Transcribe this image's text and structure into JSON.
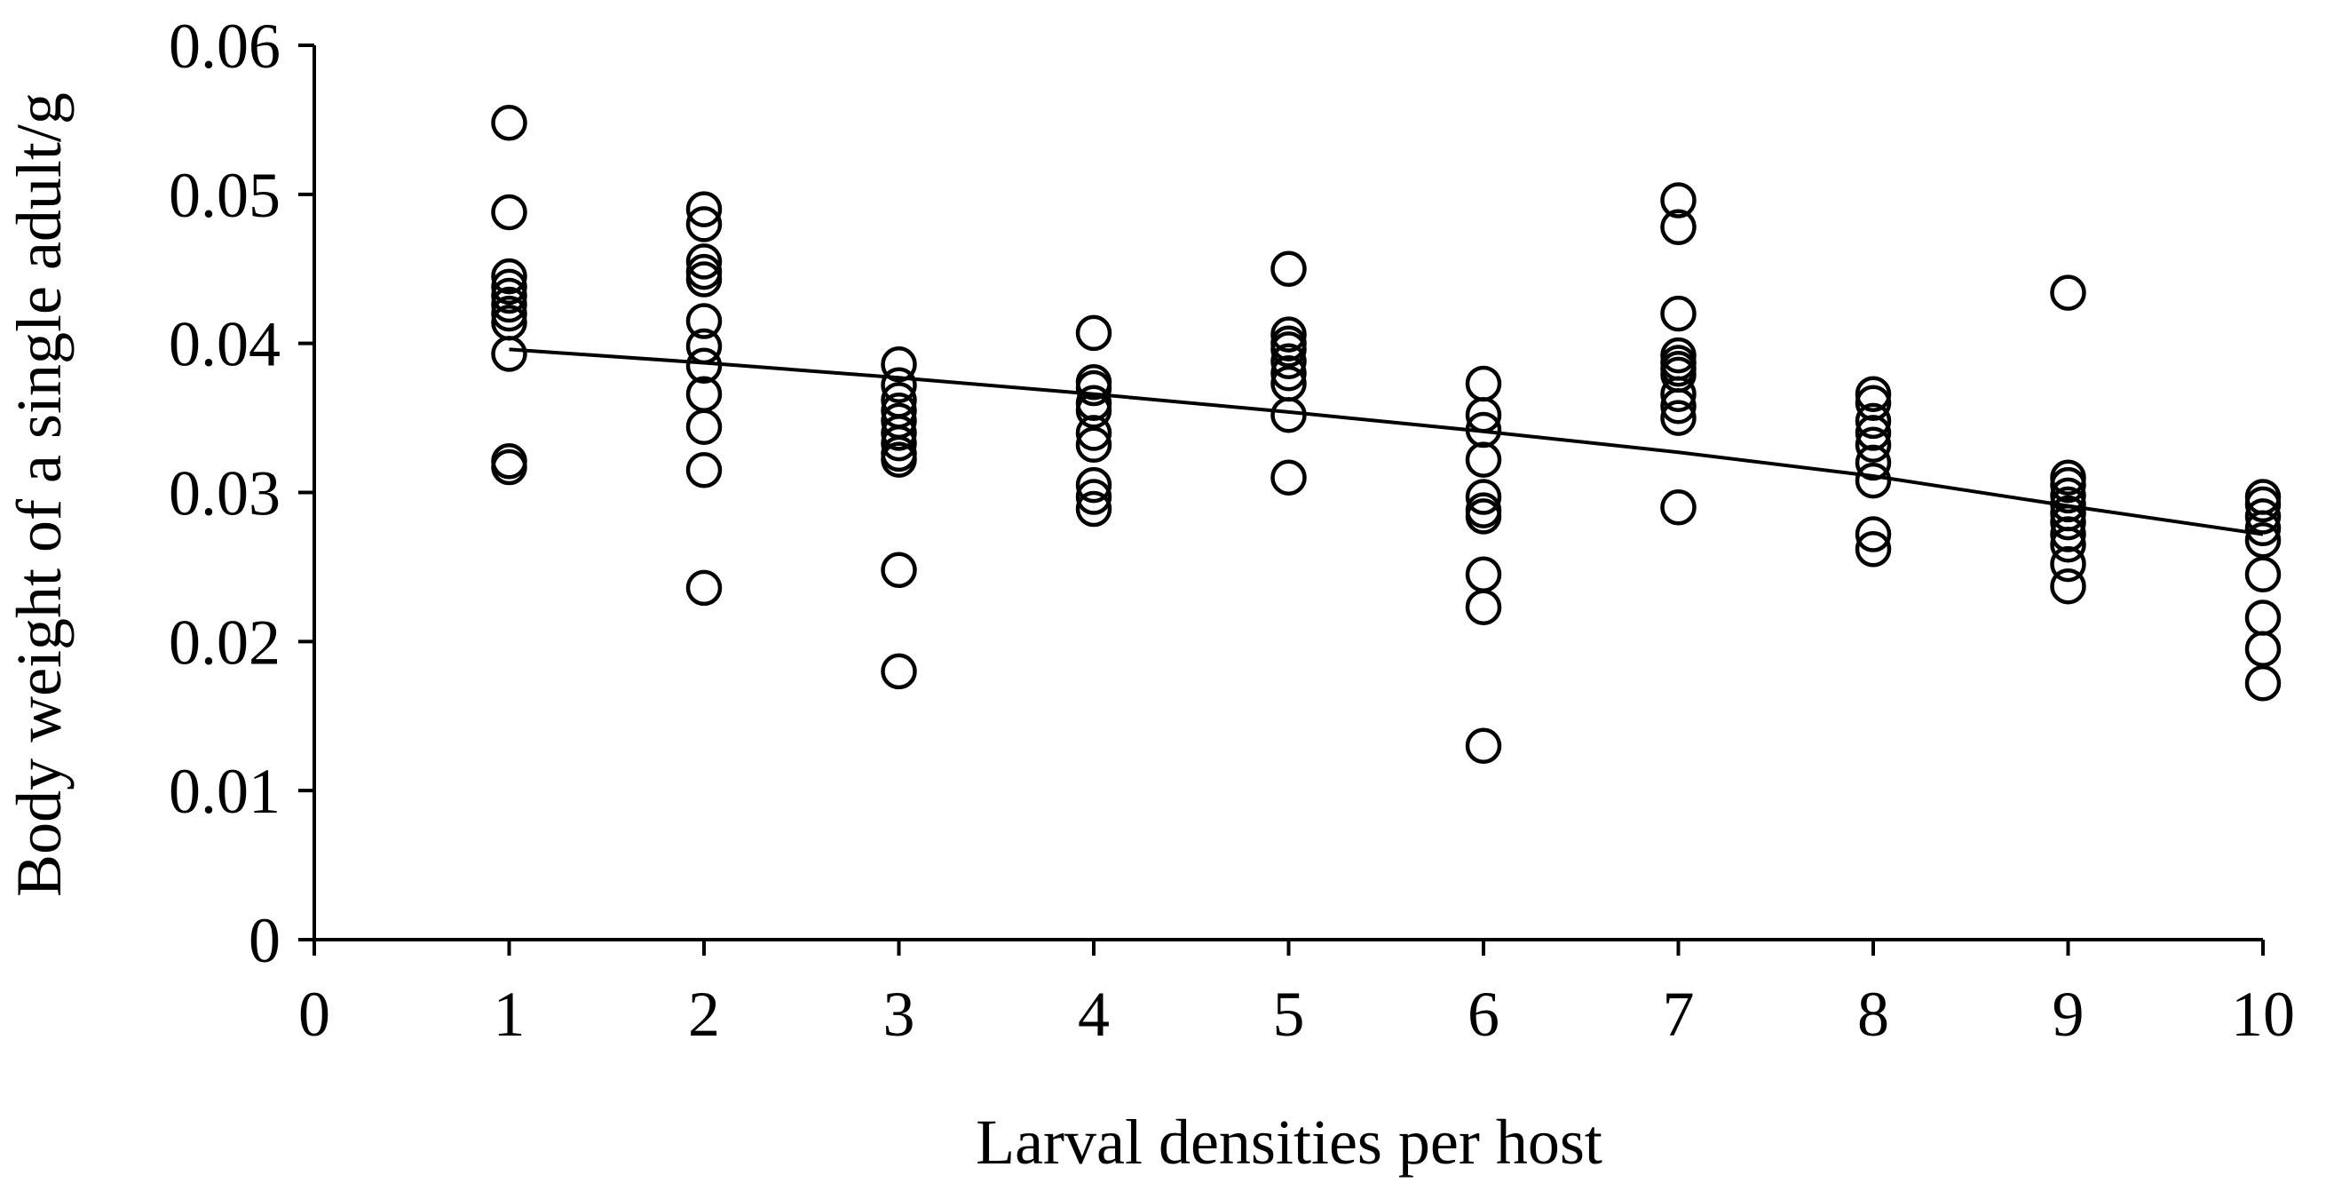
{
  "chart_data": {
    "type": "scatter",
    "title": "",
    "xlabel": "Larval densities per host",
    "ylabel": "Body weight of a single adult/g",
    "xlim": [
      0,
      10
    ],
    "ylim": [
      0,
      0.06
    ],
    "xticks": [
      "0",
      "1",
      "2",
      "3",
      "4",
      "5",
      "6",
      "7",
      "8",
      "9",
      "10"
    ],
    "yticks": [
      "0",
      "0.01",
      "0.02",
      "0.03",
      "0.04",
      "0.05",
      "0.06"
    ],
    "grid": false,
    "legend": "none",
    "marker": "open-circle",
    "series": [
      {
        "points": [
          [
            1,
            0.0548
          ],
          [
            1,
            0.0488
          ],
          [
            1,
            0.0445
          ],
          [
            1,
            0.0438
          ],
          [
            1,
            0.0432
          ],
          [
            1,
            0.0426
          ],
          [
            1,
            0.042
          ],
          [
            1,
            0.0414
          ],
          [
            1,
            0.0393
          ],
          [
            1,
            0.0321
          ],
          [
            1,
            0.0317
          ],
          [
            2,
            0.049
          ],
          [
            2,
            0.048
          ],
          [
            2,
            0.0455
          ],
          [
            2,
            0.0448
          ],
          [
            2,
            0.0443
          ],
          [
            2,
            0.0415
          ],
          [
            2,
            0.0398
          ],
          [
            2,
            0.0385
          ],
          [
            2,
            0.0366
          ],
          [
            2,
            0.0344
          ],
          [
            2,
            0.0315
          ],
          [
            2,
            0.0236
          ],
          [
            3,
            0.0386
          ],
          [
            3,
            0.0372
          ],
          [
            3,
            0.0362
          ],
          [
            3,
            0.0355
          ],
          [
            3,
            0.0348
          ],
          [
            3,
            0.034
          ],
          [
            3,
            0.0333
          ],
          [
            3,
            0.0326
          ],
          [
            3,
            0.0322
          ],
          [
            3,
            0.0248
          ],
          [
            3,
            0.018
          ],
          [
            4,
            0.0407
          ],
          [
            4,
            0.0374
          ],
          [
            4,
            0.037
          ],
          [
            4,
            0.036
          ],
          [
            4,
            0.0355
          ],
          [
            4,
            0.034
          ],
          [
            4,
            0.0332
          ],
          [
            4,
            0.0305
          ],
          [
            4,
            0.0297
          ],
          [
            4,
            0.0289
          ],
          [
            5,
            0.045
          ],
          [
            5,
            0.0406
          ],
          [
            5,
            0.04
          ],
          [
            5,
            0.0396
          ],
          [
            5,
            0.0388
          ],
          [
            5,
            0.038
          ],
          [
            5,
            0.0373
          ],
          [
            5,
            0.0352
          ],
          [
            5,
            0.031
          ],
          [
            6,
            0.0373
          ],
          [
            6,
            0.0352
          ],
          [
            6,
            0.0342
          ],
          [
            6,
            0.0322
          ],
          [
            6,
            0.0297
          ],
          [
            6,
            0.0288
          ],
          [
            6,
            0.0284
          ],
          [
            6,
            0.0245
          ],
          [
            6,
            0.0223
          ],
          [
            6,
            0.013
          ],
          [
            7,
            0.0496
          ],
          [
            7,
            0.0478
          ],
          [
            7,
            0.042
          ],
          [
            7,
            0.0392
          ],
          [
            7,
            0.0387
          ],
          [
            7,
            0.0383
          ],
          [
            7,
            0.0379
          ],
          [
            7,
            0.0366
          ],
          [
            7,
            0.0358
          ],
          [
            7,
            0.035
          ],
          [
            7,
            0.029
          ],
          [
            8,
            0.0366
          ],
          [
            8,
            0.036
          ],
          [
            8,
            0.0348
          ],
          [
            8,
            0.034
          ],
          [
            8,
            0.0332
          ],
          [
            8,
            0.032
          ],
          [
            8,
            0.0308
          ],
          [
            8,
            0.0272
          ],
          [
            8,
            0.0262
          ],
          [
            9,
            0.0434
          ],
          [
            9,
            0.031
          ],
          [
            9,
            0.0305
          ],
          [
            9,
            0.0298
          ],
          [
            9,
            0.0292
          ],
          [
            9,
            0.0286
          ],
          [
            9,
            0.028
          ],
          [
            9,
            0.0272
          ],
          [
            9,
            0.0265
          ],
          [
            9,
            0.0252
          ],
          [
            9,
            0.0237
          ],
          [
            10,
            0.0297
          ],
          [
            10,
            0.0292
          ],
          [
            10,
            0.0284
          ],
          [
            10,
            0.0276
          ],
          [
            10,
            0.0268
          ],
          [
            10,
            0.0245
          ],
          [
            10,
            0.0216
          ],
          [
            10,
            0.0195
          ],
          [
            10,
            0.0172
          ]
        ]
      }
    ],
    "trendline": {
      "type": "quadratic",
      "points": [
        [
          1,
          0.0396
        ],
        [
          2,
          0.0387
        ],
        [
          3,
          0.0377
        ],
        [
          4,
          0.0366
        ],
        [
          5,
          0.0354
        ],
        [
          6,
          0.0341
        ],
        [
          7,
          0.0327
        ],
        [
          8,
          0.0311
        ],
        [
          9,
          0.0291
        ],
        [
          10,
          0.0272
        ]
      ]
    }
  }
}
